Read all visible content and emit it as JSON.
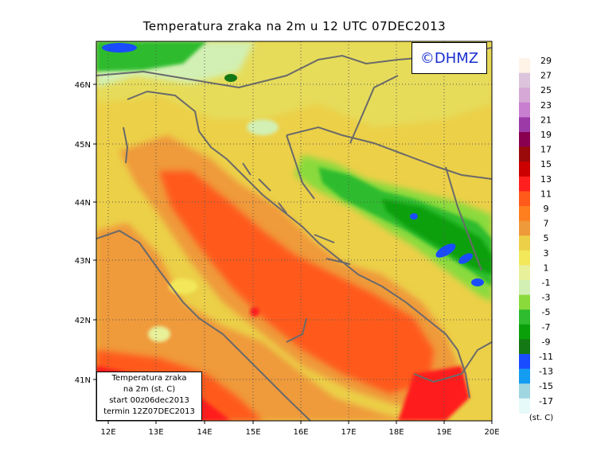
{
  "title": "Temperatura zraka na 2m u 12 UTC 07DEC2013",
  "brand": "©DHMZ",
  "info_box": {
    "line1": "Temperatura zraka",
    "line2": "na 2m (st. C)",
    "line3": "start 00z06dec2013",
    "line4": "termin 12Z07DEC2013"
  },
  "x_ticks": [
    "12E",
    "13E",
    "14E",
    "15E",
    "16E",
    "17E",
    "18E",
    "19E",
    "20E"
  ],
  "y_ticks": [
    "46N",
    "45N",
    "44N",
    "43N",
    "42N",
    "41N"
  ],
  "legend": {
    "labels": [
      "29",
      "27",
      "25",
      "23",
      "21",
      "19",
      "17",
      "15",
      "13",
      "11",
      "9",
      "7",
      "5",
      "3",
      "1",
      "-1",
      "-3",
      "-5",
      "-7",
      "-9",
      "-11",
      "-13",
      "-15",
      "-17"
    ],
    "colors": [
      "#fff2e6",
      "#dcc5dc",
      "#d6a8d6",
      "#c97fd0",
      "#9c3aa8",
      "#8a0050",
      "#9a0a0a",
      "#cc0000",
      "#ff1f1f",
      "#ff5a1a",
      "#ff7e1e",
      "#ef9a3a",
      "#ecd048",
      "#f2e85a",
      "#e8f09a",
      "#d2f0b4",
      "#8ada3c",
      "#2fbc2f",
      "#0aa00a",
      "#147814",
      "#1a4cff",
      "#149cf0",
      "#a0d6e0",
      "#e6fafa"
    ],
    "unit": "(st. C)"
  }
}
